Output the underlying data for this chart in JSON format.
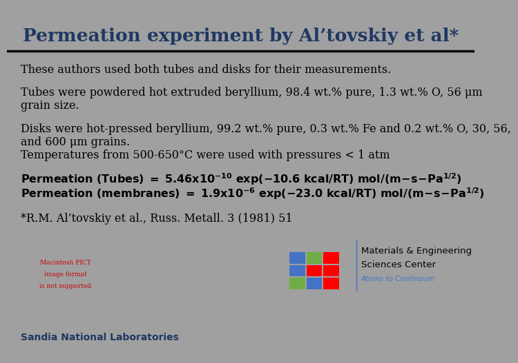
{
  "title": "Permeation experiment by Al’tovskiy et al*",
  "title_color": "#1F3864",
  "title_fontsize": 19,
  "bg_color": "#FFFFFF",
  "slide_bg": "#A0A0A0",
  "body_fontsize": 11.5,
  "para1": "These authors used both tubes and disks for their measurements.",
  "para2_line1": "Tubes were powdered hot extruded beryllium, 98.4 wt.% pure, 1.3 wt.% O, 56 μm",
  "para2_line2": "grain size.",
  "para3_line1": "Disks were hot-pressed beryllium, 99.2 wt.% pure, 0.3 wt.% Fe and 0.2 wt.% O, 30, 56,",
  "para3_line2": "and 600 μm grains.",
  "para3_line3": "Temperatures from 500-650°C were used with pressures < 1 atm",
  "para5": "*R.M. Al’tovskiy et al., Russ. Metall. 3 (1981) 51",
  "footer_left": "Sandia National Laboratories",
  "footer_left_color": "#1F3864",
  "mac_text_line1": "Macintosh PICT",
  "mac_text_line2": "image format",
  "mac_text_line3": "is not supported",
  "mac_text_color": "#CC0000",
  "mesc_line1": "Materials & Engineering",
  "mesc_line2": "Sciences Center",
  "mesc_line3": "Atoms to Continuum",
  "mesc_color": "#000000",
  "mesc_sub_color": "#4472C4",
  "grid_colors": [
    [
      "#4472C4",
      "#70AD47",
      "#FF0000"
    ],
    [
      "#4472C4",
      "#FF0000",
      "#FF0000"
    ],
    [
      "#70AD47",
      "#4472C4",
      "#FF0000"
    ]
  ]
}
